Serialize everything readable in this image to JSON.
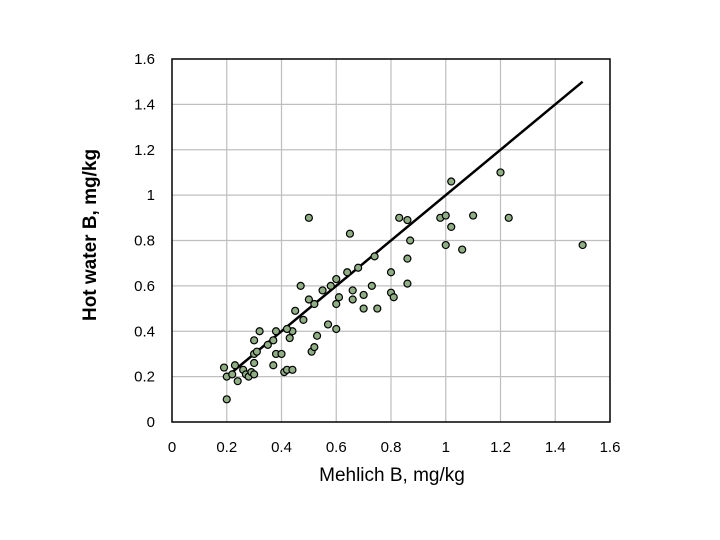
{
  "chart_data": {
    "type": "scatter",
    "title": "",
    "xlabel": "Mehlich B, mg/kg",
    "ylabel": "Hot water B, mg/kg",
    "xlim": [
      0,
      1.6
    ],
    "ylim": [
      0,
      1.6
    ],
    "x_ticks": [
      "0",
      "0.2",
      "0.4",
      "0.6",
      "0.8",
      "1",
      "1.2",
      "1.4",
      "1.6"
    ],
    "y_ticks": [
      "0",
      "0.2",
      "0.4",
      "0.6",
      "0.8",
      "1",
      "1.2",
      "1.4",
      "1.6"
    ],
    "grid": true,
    "legend": "none",
    "colors": {
      "marker_fill": "#8fae84",
      "marker_edge": "#000000",
      "line": "#000000",
      "grid": "#bfbfbf"
    },
    "line_1_1": [
      [
        0.2,
        0.2
      ],
      [
        1.5,
        1.5
      ]
    ],
    "points": [
      [
        0.2,
        0.1
      ],
      [
        0.19,
        0.24
      ],
      [
        0.2,
        0.2
      ],
      [
        0.22,
        0.21
      ],
      [
        0.23,
        0.25
      ],
      [
        0.24,
        0.18
      ],
      [
        0.26,
        0.23
      ],
      [
        0.27,
        0.21
      ],
      [
        0.28,
        0.2
      ],
      [
        0.29,
        0.22
      ],
      [
        0.3,
        0.21
      ],
      [
        0.3,
        0.26
      ],
      [
        0.3,
        0.3
      ],
      [
        0.31,
        0.31
      ],
      [
        0.3,
        0.36
      ],
      [
        0.32,
        0.4
      ],
      [
        0.35,
        0.34
      ],
      [
        0.37,
        0.36
      ],
      [
        0.38,
        0.4
      ],
      [
        0.38,
        0.3
      ],
      [
        0.37,
        0.25
      ],
      [
        0.4,
        0.3
      ],
      [
        0.41,
        0.22
      ],
      [
        0.42,
        0.23
      ],
      [
        0.44,
        0.23
      ],
      [
        0.43,
        0.37
      ],
      [
        0.44,
        0.4
      ],
      [
        0.42,
        0.41
      ],
      [
        0.45,
        0.49
      ],
      [
        0.47,
        0.6
      ],
      [
        0.48,
        0.45
      ],
      [
        0.5,
        0.54
      ],
      [
        0.51,
        0.31
      ],
      [
        0.52,
        0.33
      ],
      [
        0.53,
        0.38
      ],
      [
        0.52,
        0.52
      ],
      [
        0.55,
        0.58
      ],
      [
        0.57,
        0.43
      ],
      [
        0.58,
        0.6
      ],
      [
        0.6,
        0.63
      ],
      [
        0.6,
        0.41
      ],
      [
        0.61,
        0.55
      ],
      [
        0.6,
        0.52
      ],
      [
        0.64,
        0.66
      ],
      [
        0.66,
        0.58
      ],
      [
        0.66,
        0.54
      ],
      [
        0.68,
        0.68
      ],
      [
        0.7,
        0.56
      ],
      [
        0.7,
        0.5
      ],
      [
        0.73,
        0.6
      ],
      [
        0.74,
        0.73
      ],
      [
        0.75,
        0.5
      ],
      [
        0.8,
        0.66
      ],
      [
        0.8,
        0.57
      ],
      [
        0.81,
        0.55
      ],
      [
        0.86,
        0.72
      ],
      [
        0.86,
        0.61
      ],
      [
        0.87,
        0.8
      ],
      [
        0.5,
        0.9
      ],
      [
        0.65,
        0.83
      ],
      [
        0.83,
        0.9
      ],
      [
        0.86,
        0.89
      ],
      [
        0.98,
        0.9
      ],
      [
        1.0,
        0.91
      ],
      [
        1.02,
        0.86
      ],
      [
        1.0,
        0.78
      ],
      [
        1.06,
        0.76
      ],
      [
        1.02,
        1.06
      ],
      [
        1.1,
        0.91
      ],
      [
        1.2,
        1.1
      ],
      [
        1.23,
        0.9
      ],
      [
        1.5,
        0.78
      ]
    ]
  }
}
